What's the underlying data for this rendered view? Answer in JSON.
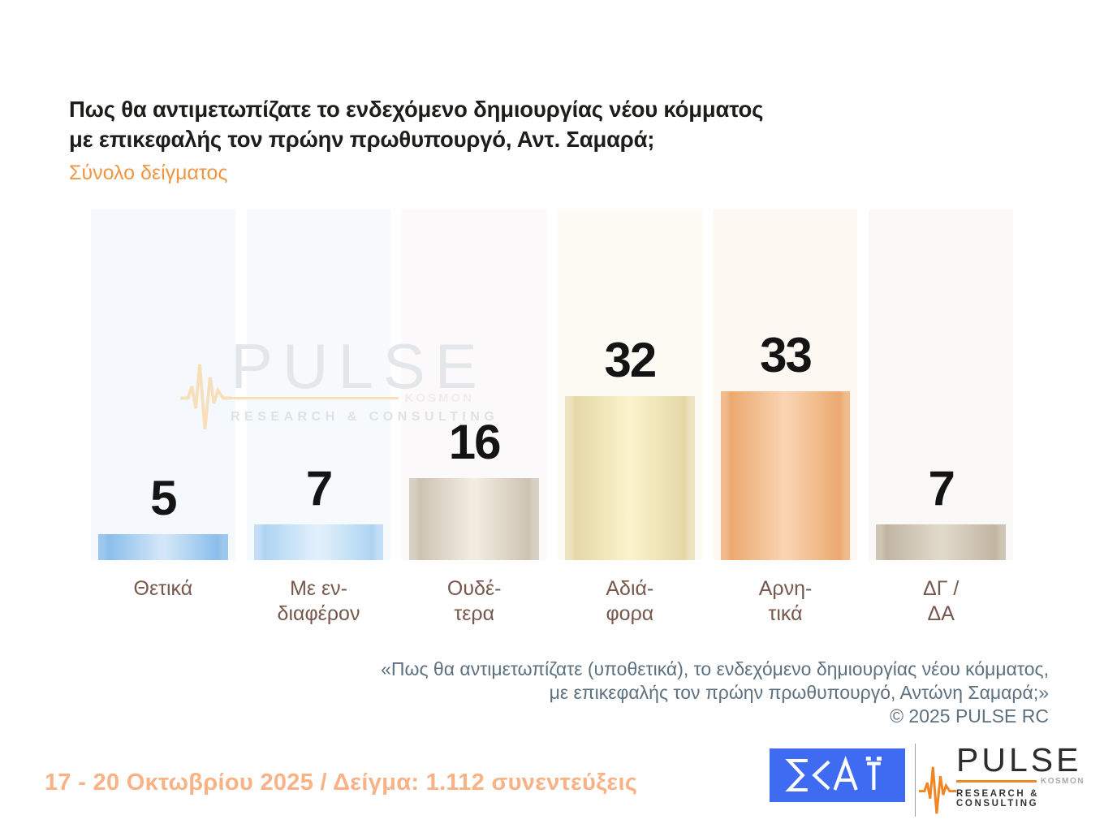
{
  "header": {
    "title_line1": "Πως θα αντιμετωπίζατε το ενδεχόμενο δημιουργίας νέου κόμματος",
    "title_line2": "με επικεφαλής τον πρώην πρωθυπουργό, Αντ. Σαμαρά;",
    "subtitle": "Σύνολο δείγματος"
  },
  "chart_data": {
    "type": "bar",
    "title": "Πως θα αντιμετωπίζατε το ενδεχόμενο δημιουργίας νέου κόμματος με επικεφαλής τον πρώην πρωθυπουργό, Αντ. Σαμαρά;",
    "subtitle": "Σύνολο δείγματος",
    "unit": "percent",
    "categories": [
      "Θετικά",
      "Με ενδιαφέρον",
      "Ουδέτερα",
      "Αδιάφορα",
      "Αρνητικά",
      "ΔΓ / ΔΑ"
    ],
    "category_label_lines": [
      [
        "Θετικά"
      ],
      [
        "Με εν-",
        "διαφέρον"
      ],
      [
        "Ουδέ-",
        "τερα"
      ],
      [
        "Αδιά-",
        "φορα"
      ],
      [
        "Αρνη-",
        "τικά"
      ],
      [
        "ΔΓ /",
        "ΔΑ"
      ]
    ],
    "values": [
      5,
      7,
      16,
      32,
      33,
      7
    ],
    "ylim": [
      0,
      68
    ],
    "grid": false,
    "legend": false,
    "value_labels": "above bars",
    "bar_colors": [
      {
        "outer": "#9cc8ee",
        "edge": "#8abeeb",
        "mid": "#d2e6f8"
      },
      {
        "outer": "#c3def6",
        "edge": "#aed4f2",
        "mid": "#e0f0fb"
      },
      {
        "outer": "#d9cfc2",
        "edge": "#cec3b3",
        "mid": "#f1ebe0"
      },
      {
        "outer": "#ede3c0",
        "edge": "#e4d8a6",
        "mid": "#f9f2cb"
      },
      {
        "outer": "#f1bb8e",
        "edge": "#eba96f",
        "mid": "#fad3b1"
      },
      {
        "outer": "#cfc5b5",
        "edge": "#c1b5a2",
        "mid": "#e0d8ca"
      }
    ],
    "column_backgrounds": [
      "#f5f9fd",
      "#f6fafd",
      "#fcf9fa",
      "#fdfcf4",
      "#fef8f2",
      "#fbf9f7"
    ]
  },
  "watermark": {
    "brand": "PULSE",
    "kosmon": "KOSMON",
    "tagline": "RESEARCH & CONSULTING"
  },
  "footer": {
    "quote_line1": "«Πως θα αντιμετωπίζατε (υποθετικά), το ενδεχόμενο δημιουργίας νέου κόμματος,",
    "quote_line2": "με επικεφαλής τον πρώην πρωθυπουργό, Αντώνη Σαμαρά;»",
    "copyright": "©  2025  PULSE RC",
    "date_sample": "17 - 20 Οκτωβρίου 2025  /  Δείγμα:  1.112 συνεντεύξεις"
  },
  "logos": {
    "skai": {
      "text": "ΣΚΑΪ"
    },
    "pulse": {
      "brand": "PULSE",
      "kosmon": "KOSMON",
      "tagline": "RESEARCH & CONSULTING"
    }
  },
  "colors": {
    "subtitle_orange": "#ef9643",
    "category_label_brown": "#76584c",
    "quote_slate": "#5d7181",
    "date_orange": "#f9b285",
    "skai_blue": "#3e6bf2",
    "pulse_orange": "#f08524",
    "value_black": "#141414"
  }
}
